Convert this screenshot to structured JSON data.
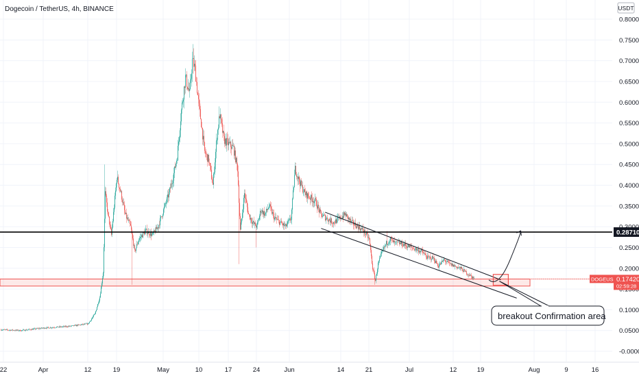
{
  "header": {
    "title": "Dogecoin / TetherUS, 4h, BINANCE",
    "currency_badge": "USDT"
  },
  "chart_data": {
    "type": "candlestick",
    "symbol": "DOGEUSDT",
    "title": "Dogecoin / TetherUS, 4h, BINANCE",
    "price_axis": {
      "currency": "USDT",
      "range": [
        -0.02,
        0.81
      ],
      "ticks": [
        "0.80000",
        "0.75000",
        "0.70000",
        "0.65000",
        "0.60000",
        "0.55000",
        "0.50000",
        "0.45000",
        "0.40000",
        "0.35000",
        "0.30000",
        "0.25000",
        "0.20000",
        "0.15000",
        "0.10000",
        "0.05000",
        "-0.00000"
      ]
    },
    "time_axis": {
      "ticks": [
        "22",
        "Apr",
        "12",
        "19",
        "May",
        "10",
        "17",
        "24",
        "Jun",
        "14",
        "21",
        "Jul",
        "12",
        "19",
        "Aug",
        "9",
        "16"
      ]
    },
    "last_price": {
      "label": "DOGEUSDT",
      "value": "0.17420",
      "countdown": "02:59:28",
      "color": "#ef5350"
    },
    "horizontal_level": {
      "value": "0.28710",
      "color": "#000000"
    },
    "support_zone": {
      "range": [
        0.157,
        0.174
      ],
      "color": "#ef5350"
    },
    "channel": {
      "upper": [
        [
          "Jun 10",
          0.335
        ],
        [
          "Jul 24",
          0.172
        ]
      ],
      "lower": [
        [
          "Jun 9",
          0.296
        ],
        [
          "Jul 28",
          0.128
        ]
      ]
    },
    "breakout_box": {
      "time": "Jul 24",
      "price": 0.172,
      "color": "#ef5350"
    },
    "projection_arrow": {
      "from": [
        "Jul 21",
        0.172
      ],
      "to": [
        "Jul 29",
        0.29
      ]
    },
    "annotation": {
      "text": "breakout Confirmation area"
    },
    "colors": {
      "up": "#26a69a",
      "down": "#ef5350",
      "grid": "#f0f3fa"
    }
  }
}
